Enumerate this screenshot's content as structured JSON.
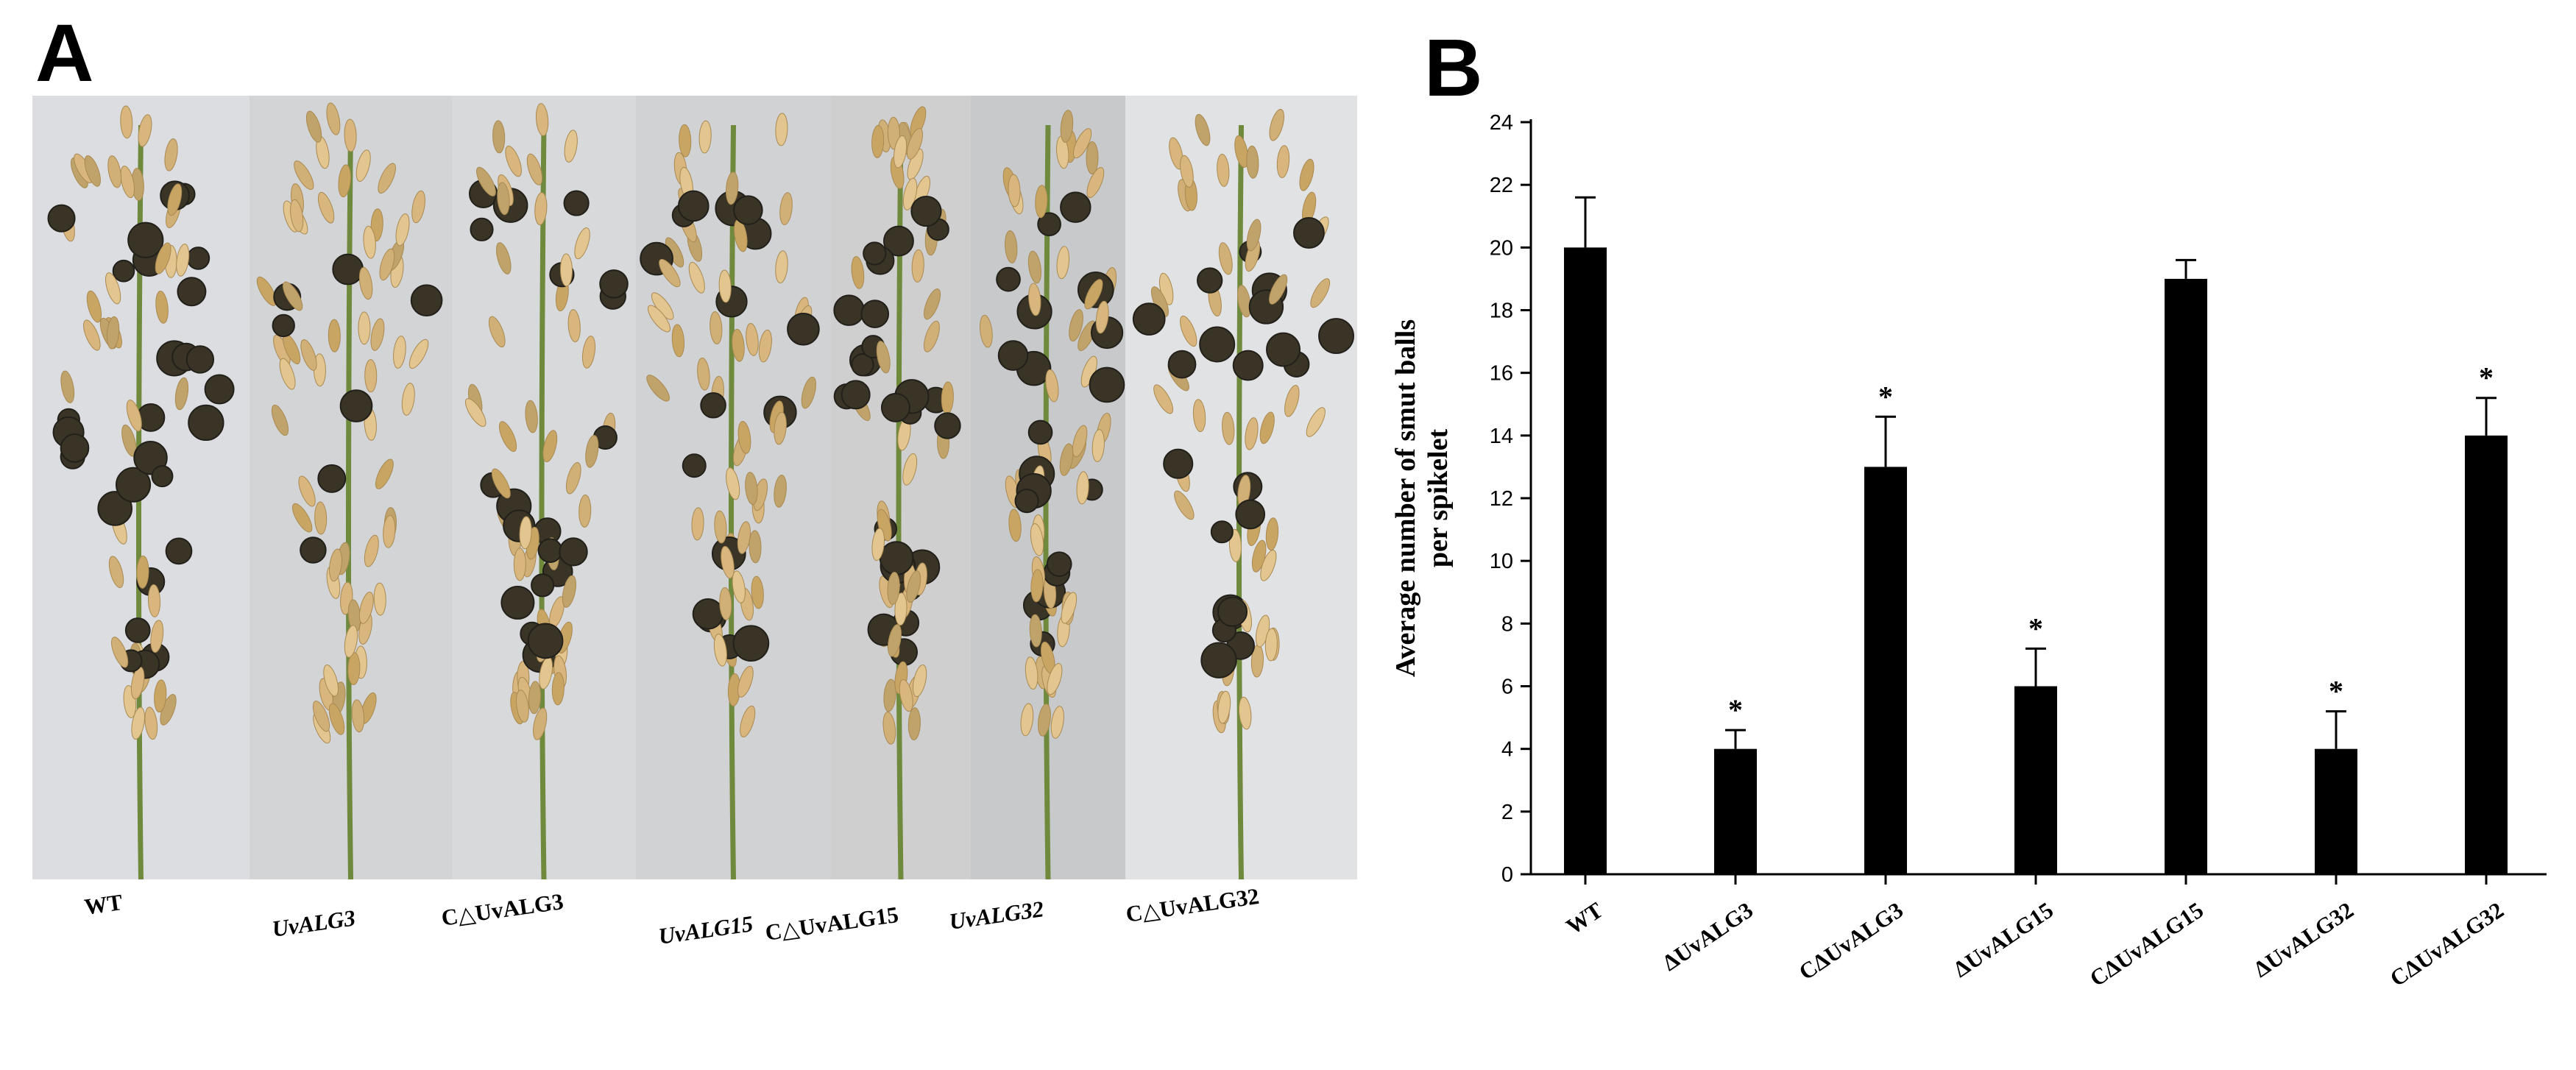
{
  "panels": {
    "a_letter": "A",
    "b_letter": "B"
  },
  "photo_labels": [
    {
      "text": "WT",
      "italic": false
    },
    {
      "text": "UvALG3",
      "italic": true
    },
    {
      "text": "C△UvALG3",
      "italic": false
    },
    {
      "text": "UvALG15",
      "italic": true
    },
    {
      "text": "C△UvALG15",
      "italic": false
    },
    {
      "text": "UvALG32",
      "italic": true
    },
    {
      "text": "C△UvALG32",
      "italic": false
    }
  ],
  "chart_data": {
    "type": "bar",
    "title": "",
    "xlabel": "",
    "ylabel": "Average number of smut balls per spikelet",
    "ylabel_lines": [
      "Average number of smut balls",
      "per spikelet"
    ],
    "ylim": [
      0,
      24
    ],
    "yticks": [
      0,
      2,
      4,
      6,
      8,
      10,
      12,
      14,
      16,
      18,
      20,
      22,
      24
    ],
    "categories": [
      "WT",
      "ΔUvALG3",
      "CΔUvALG3",
      "ΔUvALG15",
      "CΔUvALG15",
      "ΔUvALG32",
      "CΔUvALG32"
    ],
    "values": [
      20,
      4,
      13,
      6,
      19,
      4,
      14
    ],
    "errors": [
      1.6,
      0.6,
      1.6,
      1.2,
      0.6,
      1.2,
      1.2
    ],
    "significance": [
      "",
      "*",
      "*",
      "*",
      "",
      "*",
      "*"
    ],
    "bar_color": "#000000",
    "grid": false
  }
}
